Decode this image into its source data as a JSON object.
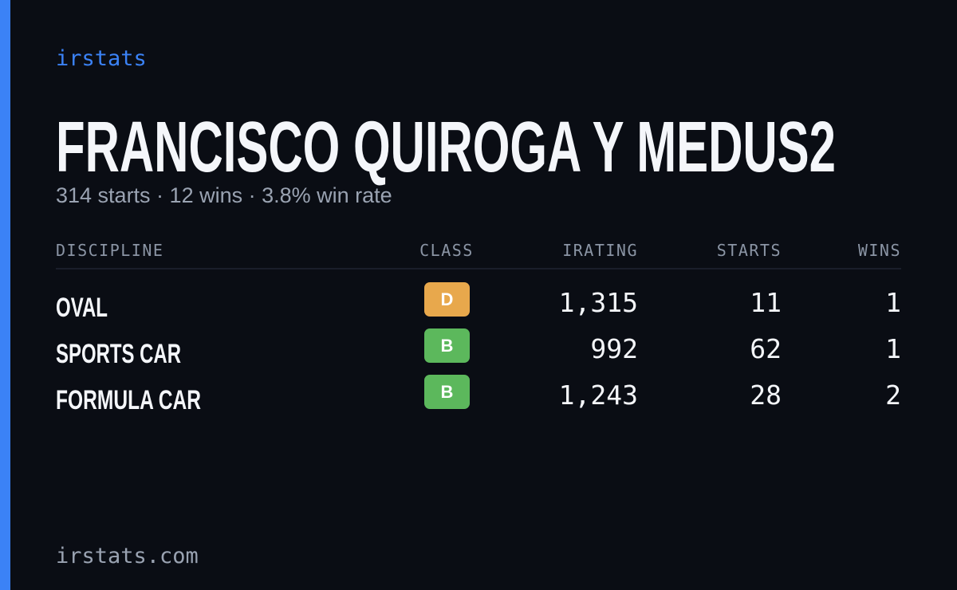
{
  "header": {
    "brand": "irstats",
    "title": "FRANCISCO QUIROGA Y MEDUS2",
    "subtitle": "314 starts · 12 wins · 3.8% win rate"
  },
  "table": {
    "columns": [
      "DISCIPLINE",
      "CLASS",
      "IRATING",
      "STARTS",
      "WINS"
    ],
    "rows": [
      [
        "OVAL",
        "D",
        "1,315",
        "11",
        "1"
      ],
      [
        "SPORTS CAR",
        "B",
        "992",
        "62",
        "1"
      ],
      [
        "FORMULA CAR",
        "B",
        "1,243",
        "28",
        "2"
      ]
    ],
    "class_colors": [
      "#e8a84c",
      "#5cb85c",
      "#5cb85c"
    ]
  },
  "footer": {
    "url": "irstats.com"
  }
}
